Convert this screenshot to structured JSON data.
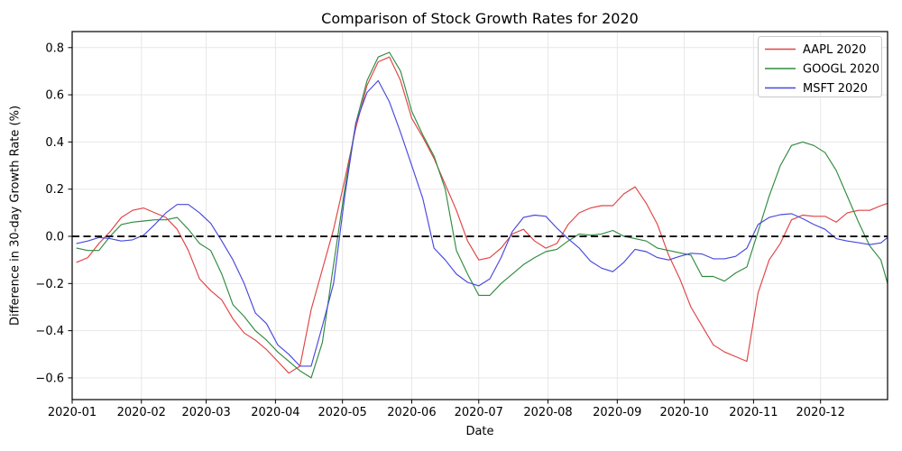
{
  "figure": {
    "title": "Comparison of Stock Growth Rates for 2020",
    "xlabel": "Date",
    "ylabel": "Difference in 30-day Growth Rate (%)"
  },
  "chart_data": {
    "type": "line",
    "title": "Comparison of Stock Growth Rates for 2020",
    "xlabel": "Date",
    "ylabel": "Difference in 30-day Growth Rate (%)",
    "grid": true,
    "legend_position": "top-right",
    "xlim": [
      "2020-01-01",
      "2020-12-31"
    ],
    "ylim": [
      -0.692,
      0.868
    ],
    "x_tick_labels": [
      "2020-01",
      "2020-02",
      "2020-03",
      "2020-04",
      "2020-05",
      "2020-06",
      "2020-07",
      "2020-08",
      "2020-09",
      "2020-10",
      "2020-11",
      "2020-12"
    ],
    "y_ticks": [
      0.8,
      0.6,
      0.4,
      0.2,
      0.0,
      -0.2,
      -0.4,
      -0.6
    ],
    "y_tick_labels": [
      "0.8",
      "0.6",
      "0.4",
      "0.2",
      "0.0",
      "−0.2",
      "−0.4",
      "−0.6"
    ],
    "zero_line": {
      "value": 0.0,
      "style": "dashed",
      "color": "#000000"
    },
    "x": [
      "2020-01-03",
      "2020-01-08",
      "2020-01-13",
      "2020-01-18",
      "2020-01-23",
      "2020-01-28",
      "2020-02-02",
      "2020-02-07",
      "2020-02-12",
      "2020-02-17",
      "2020-02-22",
      "2020-02-27",
      "2020-03-03",
      "2020-03-08",
      "2020-03-13",
      "2020-03-18",
      "2020-03-23",
      "2020-03-28",
      "2020-04-02",
      "2020-04-07",
      "2020-04-12",
      "2020-04-17",
      "2020-04-22",
      "2020-04-27",
      "2020-05-02",
      "2020-05-07",
      "2020-05-12",
      "2020-05-17",
      "2020-05-22",
      "2020-05-27",
      "2020-06-01",
      "2020-06-06",
      "2020-06-11",
      "2020-06-16",
      "2020-06-21",
      "2020-06-26",
      "2020-07-01",
      "2020-07-06",
      "2020-07-11",
      "2020-07-16",
      "2020-07-21",
      "2020-07-26",
      "2020-07-31",
      "2020-08-05",
      "2020-08-10",
      "2020-08-15",
      "2020-08-20",
      "2020-08-25",
      "2020-08-30",
      "2020-09-04",
      "2020-09-09",
      "2020-09-14",
      "2020-09-19",
      "2020-09-24",
      "2020-09-29",
      "2020-10-04",
      "2020-10-09",
      "2020-10-14",
      "2020-10-19",
      "2020-10-24",
      "2020-10-29",
      "2020-11-03",
      "2020-11-08",
      "2020-11-13",
      "2020-11-18",
      "2020-11-23",
      "2020-11-28",
      "2020-12-03",
      "2020-12-08",
      "2020-12-13",
      "2020-12-18",
      "2020-12-23",
      "2020-12-28",
      "2020-12-31"
    ],
    "series": [
      {
        "name": "AAPL 2020",
        "color": "#e04343",
        "values": [
          -0.11,
          -0.09,
          -0.03,
          0.02,
          0.08,
          0.11,
          0.12,
          0.1,
          0.08,
          0.03,
          -0.06,
          -0.18,
          -0.23,
          -0.27,
          -0.35,
          -0.41,
          -0.44,
          -0.48,
          -0.53,
          -0.58,
          -0.55,
          -0.31,
          -0.14,
          0.03,
          0.24,
          0.46,
          0.64,
          0.74,
          0.76,
          0.66,
          0.5,
          0.42,
          0.33,
          0.22,
          0.11,
          -0.02,
          -0.1,
          -0.09,
          -0.05,
          0.01,
          0.03,
          -0.02,
          -0.05,
          -0.03,
          0.05,
          0.1,
          0.12,
          0.13,
          0.13,
          0.18,
          0.21,
          0.14,
          0.05,
          -0.08,
          -0.18,
          -0.3,
          -0.38,
          -0.46,
          -0.49,
          -0.51,
          -0.53,
          -0.24,
          -0.1,
          -0.03,
          0.07,
          0.09,
          0.085,
          0.085,
          0.06,
          0.1,
          0.11,
          0.11,
          0.13,
          0.14
        ]
      },
      {
        "name": "GOOGL 2020",
        "color": "#2f8b3f",
        "values": [
          -0.05,
          -0.06,
          -0.06,
          0.0,
          0.05,
          0.06,
          0.065,
          0.07,
          0.07,
          0.08,
          0.03,
          -0.03,
          -0.06,
          -0.16,
          -0.29,
          -0.34,
          -0.4,
          -0.44,
          -0.49,
          -0.53,
          -0.57,
          -0.6,
          -0.45,
          -0.12,
          0.2,
          0.48,
          0.66,
          0.76,
          0.78,
          0.7,
          0.53,
          0.43,
          0.34,
          0.2,
          -0.06,
          -0.16,
          -0.25,
          -0.25,
          -0.2,
          -0.16,
          -0.12,
          -0.09,
          -0.065,
          -0.055,
          -0.02,
          0.01,
          0.005,
          0.01,
          0.025,
          0.0,
          -0.01,
          -0.02,
          -0.05,
          -0.06,
          -0.07,
          -0.08,
          -0.17,
          -0.17,
          -0.19,
          -0.155,
          -0.13,
          0.02,
          0.17,
          0.3,
          0.385,
          0.4,
          0.385,
          0.355,
          0.28,
          0.17,
          0.06,
          -0.04,
          -0.1,
          -0.2
        ]
      },
      {
        "name": "MSFT 2020",
        "color": "#4848dd",
        "values": [
          -0.03,
          -0.02,
          -0.005,
          -0.01,
          -0.02,
          -0.015,
          0.005,
          0.05,
          0.1,
          0.135,
          0.135,
          0.1,
          0.055,
          -0.02,
          -0.1,
          -0.2,
          -0.325,
          -0.37,
          -0.46,
          -0.5,
          -0.55,
          -0.55,
          -0.38,
          -0.2,
          0.17,
          0.48,
          0.61,
          0.66,
          0.57,
          0.44,
          0.3,
          0.16,
          -0.05,
          -0.1,
          -0.16,
          -0.195,
          -0.21,
          -0.18,
          -0.09,
          0.02,
          0.08,
          0.09,
          0.085,
          0.035,
          -0.01,
          -0.05,
          -0.105,
          -0.135,
          -0.15,
          -0.11,
          -0.055,
          -0.065,
          -0.09,
          -0.1,
          -0.085,
          -0.072,
          -0.075,
          -0.095,
          -0.095,
          -0.085,
          -0.05,
          0.05,
          0.08,
          0.092,
          0.096,
          0.075,
          0.05,
          0.03,
          -0.01,
          -0.02,
          -0.027,
          -0.035,
          -0.028,
          -0.005
        ]
      }
    ]
  }
}
